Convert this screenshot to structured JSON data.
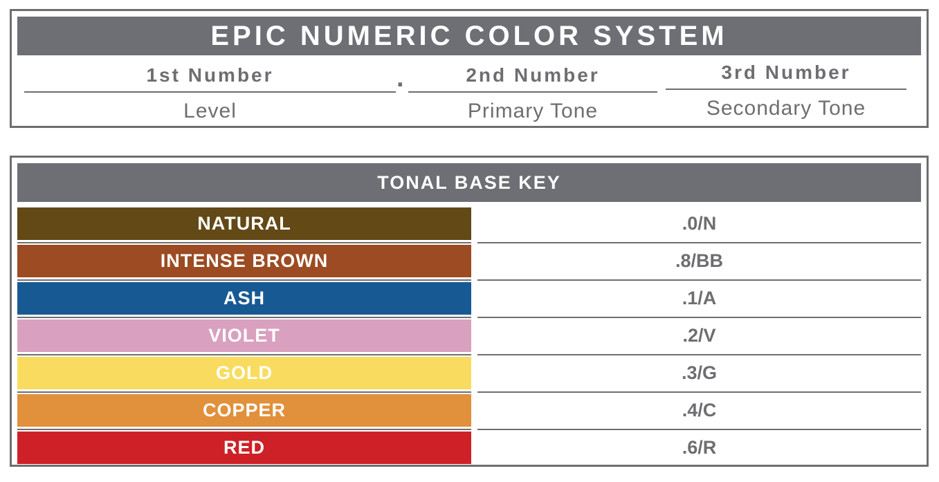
{
  "top_panel": {
    "title": "EPIC NUMERIC COLOR SYSTEM",
    "separator_dot": ".",
    "columns": [
      {
        "number": "1st Number",
        "tone": "Level"
      },
      {
        "number": "2nd Number",
        "tone": "Primary Tone"
      },
      {
        "number": "3rd Number",
        "tone": "Secondary Tone"
      }
    ]
  },
  "tonal_key": {
    "title": "TONAL BASE KEY",
    "rows": [
      {
        "label": "NATURAL",
        "code": ".0/N",
        "color": "#624916"
      },
      {
        "label": "INTENSE BROWN",
        "code": ".8/BB",
        "color": "#9C4B22"
      },
      {
        "label": "ASH",
        "code": ".1/A",
        "color": "#175A93"
      },
      {
        "label": "VIOLET",
        "code": ".2/V",
        "color": "#D9A0BF"
      },
      {
        "label": "GOLD",
        "code": ".3/G",
        "color": "#F9DC5F"
      },
      {
        "label": "COPPER",
        "code": ".4/C",
        "color": "#E1903B"
      },
      {
        "label": "RED",
        "code": ".6/R",
        "color": "#CE2127"
      }
    ]
  },
  "colors": {
    "panel_border": "#6D6E71",
    "header_bar": "#6D6F74",
    "text_gray": "#6D6E71",
    "label_text": "#FFFFFF"
  }
}
